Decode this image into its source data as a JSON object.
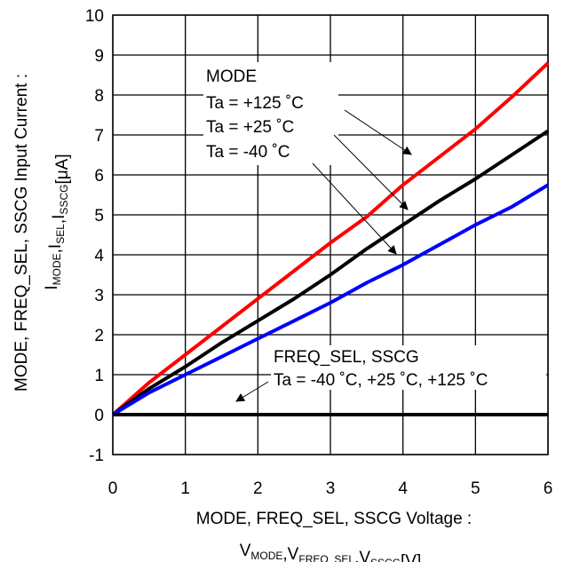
{
  "chart_data": {
    "type": "line",
    "xlabel": {
      "line1": "MODE, FREQ_SEL, SSCG Voltage :",
      "line2_parts": [
        {
          "t": "V",
          "sub": "MODE"
        },
        {
          "t": ",V",
          "sub": "FREQ_SEL"
        },
        {
          "t": ",V",
          "sub": "SSCG"
        },
        {
          "t": "[V]",
          "sub": ""
        }
      ]
    },
    "ylabel": {
      "line1": "MODE, FREQ_SEL, SSCG Input Current :",
      "line2_parts": [
        {
          "t": "I",
          "sub": "MODE"
        },
        {
          "t": ",I",
          "sub": "SEL"
        },
        {
          "t": ",I",
          "sub": "SSCG"
        },
        {
          "t": "[μA]",
          "sub": ""
        }
      ]
    },
    "xlim": [
      0,
      6
    ],
    "ylim": [
      -1,
      10
    ],
    "xticks": [
      0,
      1,
      2,
      3,
      4,
      5,
      6
    ],
    "yticks": [
      -1,
      0,
      1,
      2,
      3,
      4,
      5,
      6,
      7,
      8,
      9,
      10
    ],
    "grid": true,
    "series": [
      {
        "key": "mode_125",
        "color": "#ff0000",
        "x": [
          0,
          0.5,
          1,
          1.5,
          2,
          2.5,
          3,
          3.5,
          4,
          4.5,
          5,
          5.5,
          6
        ],
        "y": [
          0,
          0.8,
          1.5,
          2.2,
          2.9,
          3.6,
          4.3,
          4.95,
          5.75,
          6.45,
          7.15,
          7.95,
          8.8
        ]
      },
      {
        "key": "mode_25",
        "color": "#000000",
        "x": [
          0,
          0.5,
          1,
          1.5,
          2,
          2.5,
          3,
          3.5,
          4,
          4.5,
          5,
          5.5,
          6
        ],
        "y": [
          0,
          0.65,
          1.2,
          1.8,
          2.35,
          2.9,
          3.5,
          4.15,
          4.75,
          5.35,
          5.9,
          6.5,
          7.1
        ]
      },
      {
        "key": "mode_m40",
        "color": "#0000ff",
        "x": [
          0,
          0.5,
          1,
          1.5,
          2,
          2.5,
          3,
          3.5,
          4,
          4.5,
          5,
          5.5,
          6
        ],
        "y": [
          0,
          0.55,
          1.0,
          1.45,
          1.9,
          2.35,
          2.8,
          3.3,
          3.75,
          4.25,
          4.75,
          5.2,
          5.75
        ]
      },
      {
        "key": "freq_sel_sscg",
        "color": "#000000",
        "x": [
          0,
          6
        ],
        "y": [
          0,
          0
        ]
      }
    ],
    "annotations": {
      "mode_group": {
        "title": "MODE",
        "lines": [
          "Ta = +125 ˚C",
          "Ta = +25 ˚C",
          "Ta = -40 ˚C"
        ]
      },
      "freq_group": {
        "title": "FREQ_SEL, SSCG",
        "line": "Ta = -40 ˚C, +25 ˚C, +125 ˚C"
      }
    }
  }
}
